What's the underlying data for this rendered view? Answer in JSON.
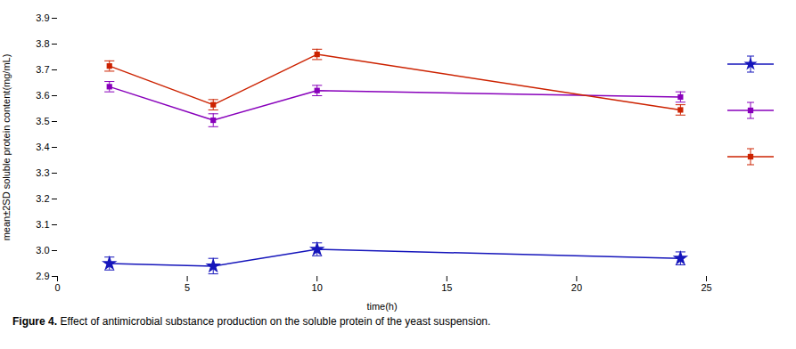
{
  "chart_data": {
    "type": "line",
    "xlabel": "time(h)",
    "ylabel": "mean±2SD soluble protein content(mg/mL)",
    "xlim": [
      0,
      25
    ],
    "ylim": [
      2.9,
      3.9
    ],
    "xticks": [
      0,
      5,
      10,
      15,
      20,
      25
    ],
    "yticks": [
      2.9,
      {
        "value": 3.0,
        "label": "3.0"
      },
      3.1,
      3.2,
      3.3,
      3.4,
      3.5,
      3.6,
      3.7,
      3.8,
      3.9
    ],
    "legend": "right",
    "series": [
      {
        "x": [
          2,
          6,
          10,
          24
        ],
        "values": [
          2.95,
          2.94,
          3.005,
          2.97
        ],
        "yerr": [
          0.025,
          0.03,
          0.025,
          0.025
        ],
        "color": "#1515BB",
        "marker": "star"
      },
      {
        "x": [
          2,
          6,
          10,
          24
        ],
        "values": [
          3.635,
          3.505,
          3.62,
          3.595
        ],
        "yerr": [
          0.02,
          0.025,
          0.02,
          0.02
        ],
        "color": "#8800BB",
        "marker": "square"
      },
      {
        "x": [
          2,
          6,
          10,
          24
        ],
        "values": [
          3.715,
          3.565,
          3.76,
          3.545
        ],
        "yerr": [
          0.02,
          0.02,
          0.02,
          0.02
        ],
        "color": "#CC2200",
        "marker": "square"
      }
    ],
    "caption_label": "Figure 4.",
    "caption": "Effect of antimicrobial substance production on the soluble protein of the yeast suspension."
  }
}
